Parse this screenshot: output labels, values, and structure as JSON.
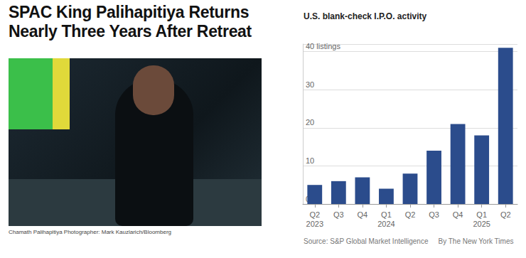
{
  "headline": "SPAC King Palihapitiya Returns Nearly Three Years After Retreat",
  "photo_caption": "Chamath Palihapitiya Photographer: Mark Kauzlarich/Bloomberg",
  "chart_data": {
    "type": "bar",
    "title": "U.S. blank-check I.P.O. activity",
    "categories": [
      "Q2\n2023",
      "Q3",
      "Q4",
      "Q1\n2024",
      "Q2",
      "Q3",
      "Q4",
      "Q1\n2025",
      "Q2"
    ],
    "values": [
      5,
      6,
      7,
      4,
      8,
      14,
      21,
      18,
      41
    ],
    "color": "#2b4c8c",
    "ylim": [
      0,
      42
    ],
    "yticks": [
      0,
      10,
      20,
      30,
      {
        "value": 40,
        "label": "40 listings"
      }
    ],
    "grid": true,
    "source": "Source: S&P Global Market Intelligence",
    "byline": "By The New York Times"
  }
}
